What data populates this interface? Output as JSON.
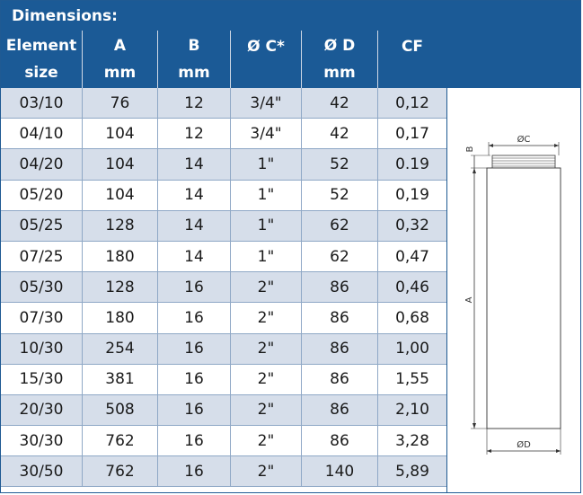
{
  "title": "Dimensions:",
  "headers": [
    {
      "line1": "Element",
      "line2": "size"
    },
    {
      "line1": "A",
      "line2": "mm"
    },
    {
      "line1": "B",
      "line2": "mm"
    },
    {
      "line1": "Ø C*",
      "line2": ""
    },
    {
      "line1": "Ø D",
      "line2": "mm"
    },
    {
      "line1": "CF",
      "line2": ""
    }
  ],
  "rows": [
    [
      "03/10",
      "76",
      "12",
      "3/4\"",
      "42",
      "0,12"
    ],
    [
      "04/10",
      "104",
      "12",
      "3/4\"",
      "42",
      "0,17"
    ],
    [
      "04/20",
      "104",
      "14",
      "1\"",
      "52",
      "0.19"
    ],
    [
      "05/20",
      "104",
      "14",
      "1\"",
      "52",
      "0,19"
    ],
    [
      "05/25",
      "128",
      "14",
      "1\"",
      "62",
      "0,32"
    ],
    [
      "07/25",
      "180",
      "14",
      "1\"",
      "62",
      "0,47"
    ],
    [
      "05/30",
      "128",
      "16",
      "2\"",
      "86",
      "0,46"
    ],
    [
      "07/30",
      "180",
      "16",
      "2\"",
      "86",
      "0,68"
    ],
    [
      "10/30",
      "254",
      "16",
      "2\"",
      "86",
      "1,00"
    ],
    [
      "15/30",
      "381",
      "16",
      "2\"",
      "86",
      "1,55"
    ],
    [
      "20/30",
      "508",
      "16",
      "2\"",
      "86",
      "2,10"
    ],
    [
      "30/30",
      "762",
      "16",
      "2\"",
      "86",
      "3,28"
    ],
    [
      "30/50",
      "762",
      "16",
      "2\"",
      "140",
      "5,89"
    ]
  ],
  "drawing_labels": {
    "oc": "ØC",
    "od": "ØD",
    "a": "A",
    "b": "B"
  }
}
